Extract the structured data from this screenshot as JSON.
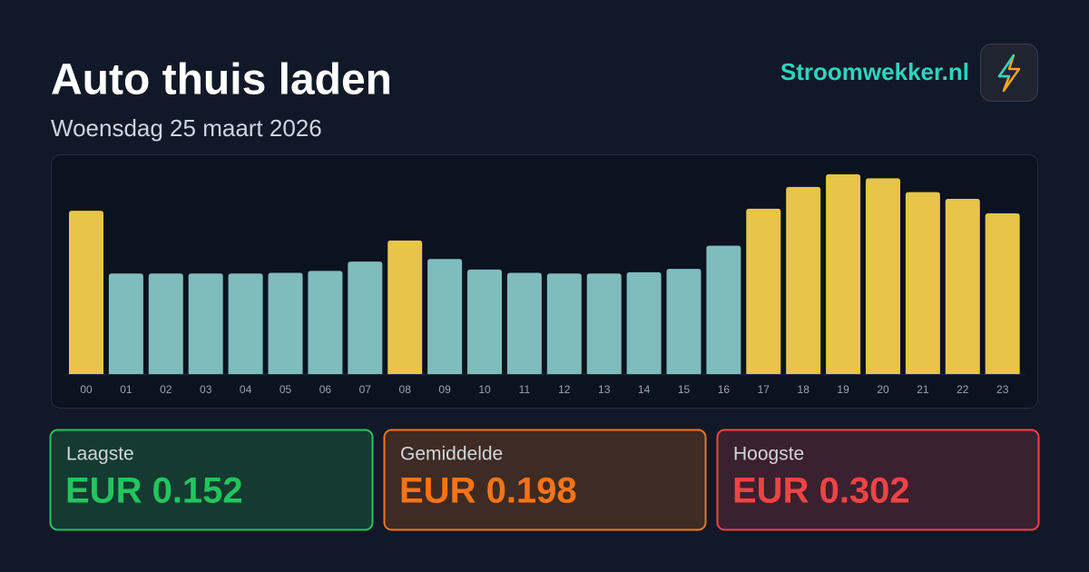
{
  "header": {
    "title": "Auto thuis laden",
    "subtitle": "Woensdag 25 maart 2026",
    "brand": "Stroomwekker.nl"
  },
  "chart_data": {
    "type": "bar",
    "categories": [
      "00",
      "01",
      "02",
      "03",
      "04",
      "05",
      "06",
      "07",
      "08",
      "09",
      "10",
      "11",
      "12",
      "13",
      "14",
      "15",
      "16",
      "17",
      "18",
      "19",
      "20",
      "21",
      "22",
      "23"
    ],
    "values": [
      0.247,
      0.152,
      0.152,
      0.152,
      0.152,
      0.153,
      0.156,
      0.17,
      0.202,
      0.174,
      0.158,
      0.153,
      0.152,
      0.152,
      0.154,
      0.159,
      0.194,
      0.25,
      0.283,
      0.302,
      0.296,
      0.275,
      0.265,
      0.243
    ],
    "colors": [
      "#e6c547",
      "#7fbcbc",
      "#7fbcbc",
      "#7fbcbc",
      "#7fbcbc",
      "#7fbcbc",
      "#7fbcbc",
      "#7fbcbc",
      "#e6c547",
      "#7fbcbc",
      "#7fbcbc",
      "#7fbcbc",
      "#7fbcbc",
      "#7fbcbc",
      "#7fbcbc",
      "#7fbcbc",
      "#7fbcbc",
      "#e6c547",
      "#e6c547",
      "#e6c547",
      "#e6c547",
      "#e6c547",
      "#e6c547",
      "#e6c547"
    ]
  },
  "stats": [
    {
      "label": "Laagste",
      "value": "EUR 0.152",
      "color": "#22c55e",
      "background": "#143a31"
    },
    {
      "label": "Gemiddelde",
      "value": "EUR 0.198",
      "color": "#f97316",
      "background": "#3d2b24"
    },
    {
      "label": "Hoogste",
      "value": "EUR 0.302",
      "color": "#ef4444",
      "background": "#3b2030"
    }
  ]
}
